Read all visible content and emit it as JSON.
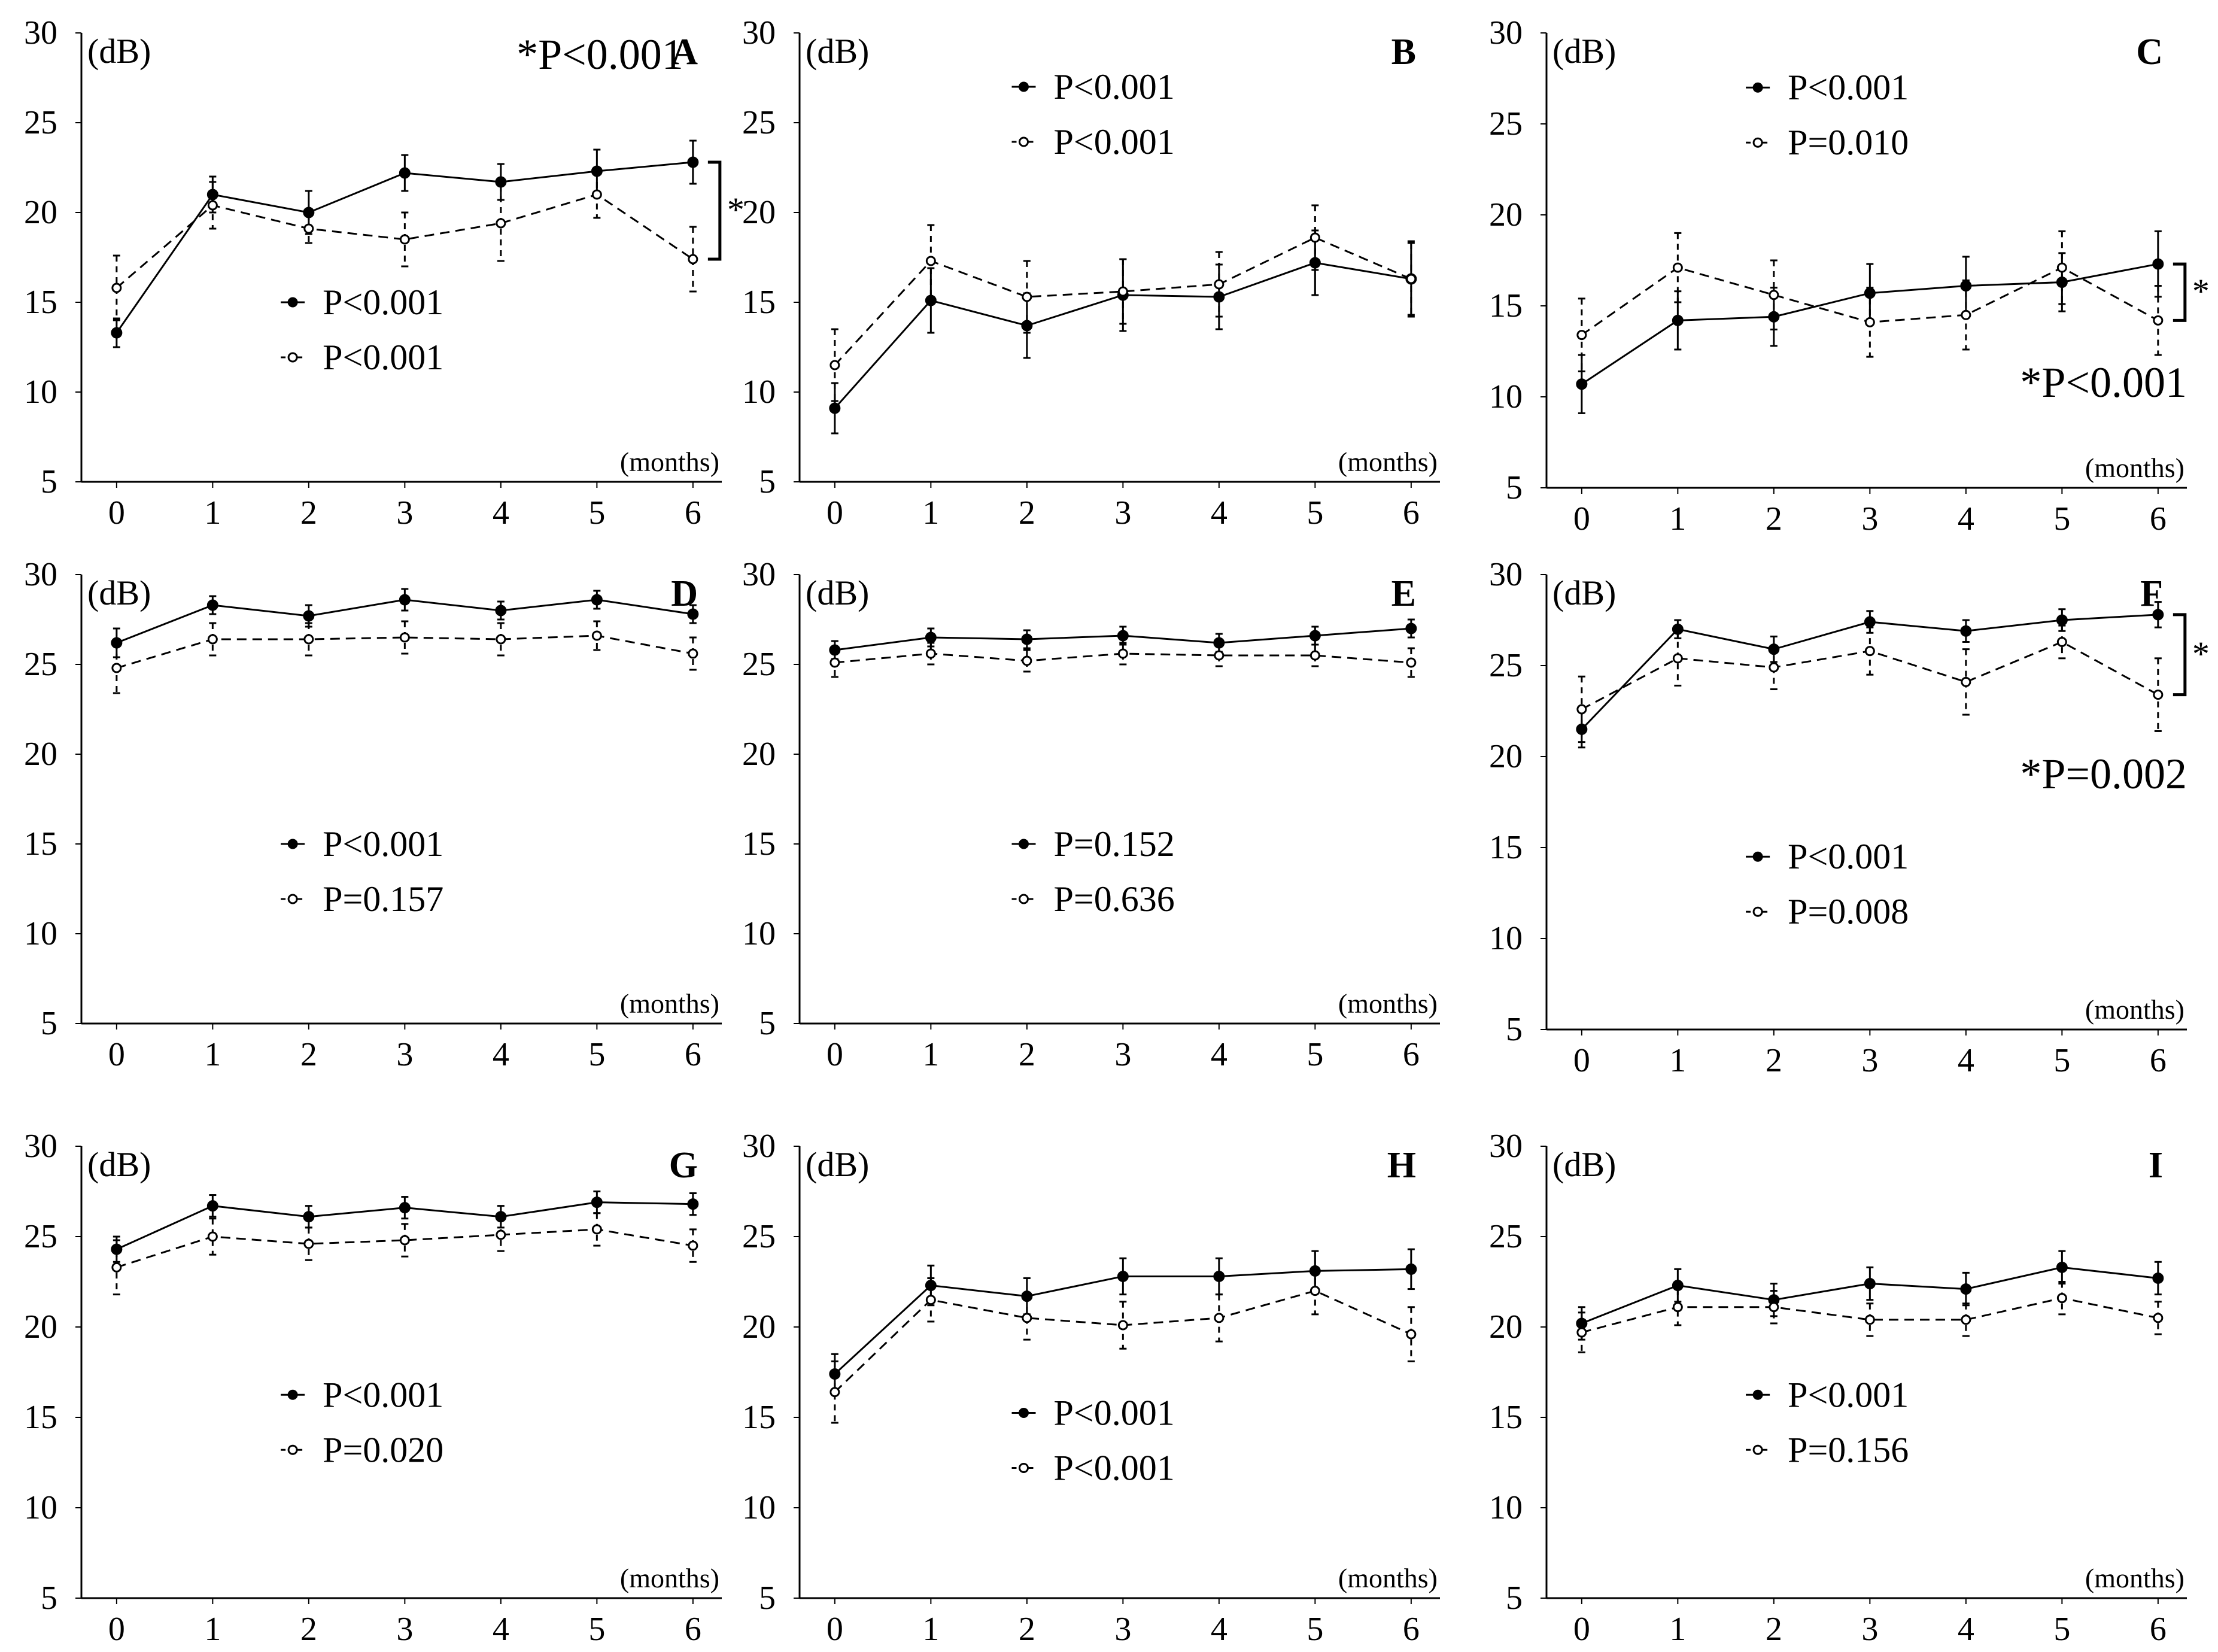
{
  "figure": {
    "unit_label": "(dB)",
    "x_axis_label": "(months)",
    "y_ticks": [
      30,
      25,
      20,
      15,
      10,
      5
    ],
    "x_ticks": [
      0,
      1,
      2,
      3,
      4,
      5,
      6
    ],
    "style": {
      "line_color": "#000000",
      "background": "#ffffff"
    }
  },
  "chart_data": [
    {
      "panel": "A",
      "type": "line",
      "x": [
        0,
        1,
        2,
        3,
        4,
        5,
        6
      ],
      "ylim": [
        5,
        30
      ],
      "ylabel": "(dB)",
      "xlabel": "(months)",
      "series": [
        {
          "name": "solid",
          "style": "solid",
          "marker": "filled",
          "p_label": "P<0.001",
          "values": [
            13.3,
            21.0,
            20.0,
            22.2,
            21.7,
            22.3,
            22.8
          ],
          "errors": [
            0.8,
            1.0,
            1.2,
            1.0,
            1.0,
            1.2,
            1.2
          ]
        },
        {
          "name": "dashed",
          "style": "dashed",
          "marker": "open",
          "p_label": "P<0.001",
          "values": [
            15.8,
            20.4,
            19.1,
            18.5,
            19.4,
            21.0,
            17.4
          ],
          "errors": [
            1.8,
            1.3,
            0.8,
            1.5,
            2.1,
            1.3,
            1.8
          ]
        }
      ],
      "bracket": {
        "at_x": 6,
        "label": "*"
      },
      "annotation": "*P<0.001"
    },
    {
      "panel": "B",
      "type": "line",
      "x": [
        0,
        1,
        2,
        3,
        4,
        5,
        6
      ],
      "ylim": [
        5,
        30
      ],
      "ylabel": "(dB)",
      "xlabel": "(months)",
      "series": [
        {
          "name": "solid",
          "style": "solid",
          "marker": "filled",
          "p_label": "P<0.001",
          "values": [
            9.1,
            15.1,
            13.7,
            15.4,
            15.3,
            17.2,
            16.3
          ],
          "errors": [
            1.4,
            1.8,
            1.8,
            2.0,
            1.8,
            1.8,
            2.1
          ]
        },
        {
          "name": "dashed",
          "style": "dashed",
          "marker": "open",
          "p_label": "P<0.001",
          "values": [
            11.5,
            17.3,
            15.3,
            15.6,
            16.0,
            18.6,
            16.3
          ],
          "errors": [
            2.0,
            2.0,
            2.0,
            1.8,
            1.8,
            1.8,
            2.0
          ]
        }
      ]
    },
    {
      "panel": "C",
      "type": "line",
      "x": [
        0,
        1,
        2,
        3,
        4,
        5,
        6
      ],
      "ylim": [
        5,
        30
      ],
      "ylabel": "(dB)",
      "xlabel": "(months)",
      "series": [
        {
          "name": "solid",
          "style": "solid",
          "marker": "filled",
          "p_label": "P<0.001",
          "values": [
            10.7,
            14.2,
            14.4,
            15.7,
            16.1,
            16.3,
            17.3
          ],
          "errors": [
            1.6,
            1.6,
            1.6,
            1.6,
            1.6,
            1.6,
            1.8
          ]
        },
        {
          "name": "dashed",
          "style": "dashed",
          "marker": "open",
          "p_label": "P=0.010",
          "values": [
            13.4,
            17.1,
            15.6,
            14.1,
            14.5,
            17.1,
            14.2
          ],
          "errors": [
            2.0,
            1.9,
            1.9,
            1.9,
            1.9,
            2.0,
            1.9
          ]
        }
      ],
      "bracket": {
        "at_x": 6,
        "label": "*"
      },
      "annotation": "*P<0.001"
    },
    {
      "panel": "D",
      "type": "line",
      "x": [
        0,
        1,
        2,
        3,
        4,
        5,
        6
      ],
      "ylim": [
        5,
        30
      ],
      "ylabel": "(dB)",
      "xlabel": "(months)",
      "series": [
        {
          "name": "solid",
          "style": "solid",
          "marker": "filled",
          "p_label": "P<0.001",
          "values": [
            26.2,
            28.3,
            27.7,
            28.6,
            28.0,
            28.6,
            27.8
          ],
          "errors": [
            0.8,
            0.5,
            0.6,
            0.6,
            0.5,
            0.5,
            0.5
          ]
        },
        {
          "name": "dashed",
          "style": "dashed",
          "marker": "open",
          "p_label": "P=0.157",
          "values": [
            24.8,
            26.4,
            26.4,
            26.5,
            26.4,
            26.6,
            25.6
          ],
          "errors": [
            1.4,
            0.9,
            0.9,
            0.9,
            0.9,
            0.8,
            0.9
          ]
        }
      ]
    },
    {
      "panel": "E",
      "type": "line",
      "x": [
        0,
        1,
        2,
        3,
        4,
        5,
        6
      ],
      "ylim": [
        5,
        30
      ],
      "ylabel": "(dB)",
      "xlabel": "(months)",
      "series": [
        {
          "name": "solid",
          "style": "solid",
          "marker": "filled",
          "p_label": "P=0.152",
          "values": [
            25.8,
            26.5,
            26.4,
            26.6,
            26.2,
            26.6,
            27.0
          ],
          "errors": [
            0.5,
            0.5,
            0.5,
            0.5,
            0.5,
            0.5,
            0.5
          ]
        },
        {
          "name": "dashed",
          "style": "dashed",
          "marker": "open",
          "p_label": "P=0.636",
          "values": [
            25.1,
            25.6,
            25.2,
            25.6,
            25.5,
            25.5,
            25.1
          ],
          "errors": [
            0.8,
            0.6,
            0.6,
            0.6,
            0.6,
            0.6,
            0.8
          ]
        }
      ]
    },
    {
      "panel": "F",
      "type": "line",
      "x": [
        0,
        1,
        2,
        3,
        4,
        5,
        6
      ],
      "ylim": [
        5,
        30
      ],
      "ylabel": "(dB)",
      "xlabel": "(months)",
      "series": [
        {
          "name": "solid",
          "style": "solid",
          "marker": "filled",
          "p_label": "P<0.001",
          "values": [
            21.5,
            27.0,
            25.9,
            27.4,
            26.9,
            27.5,
            27.8
          ],
          "errors": [
            1.0,
            0.5,
            0.7,
            0.6,
            0.6,
            0.6,
            0.7
          ]
        },
        {
          "name": "dashed",
          "style": "dashed",
          "marker": "open",
          "p_label": "P=0.008",
          "values": [
            22.6,
            25.4,
            24.9,
            25.8,
            24.1,
            26.3,
            23.4
          ],
          "errors": [
            1.8,
            1.5,
            1.2,
            1.3,
            1.8,
            0.9,
            2.0
          ]
        }
      ],
      "bracket": {
        "at_x": 6,
        "label": "*"
      },
      "annotation": "*P=0.002"
    },
    {
      "panel": "G",
      "type": "line",
      "x": [
        0,
        1,
        2,
        3,
        4,
        5,
        6
      ],
      "ylim": [
        5,
        30
      ],
      "ylabel": "(dB)",
      "xlabel": "(months)",
      "series": [
        {
          "name": "solid",
          "style": "solid",
          "marker": "filled",
          "p_label": "P<0.001",
          "values": [
            24.3,
            26.7,
            26.1,
            26.6,
            26.1,
            26.9,
            26.8
          ],
          "errors": [
            0.7,
            0.6,
            0.6,
            0.6,
            0.6,
            0.6,
            0.6
          ]
        },
        {
          "name": "dashed",
          "style": "dashed",
          "marker": "open",
          "p_label": "P=0.020",
          "values": [
            23.3,
            25.0,
            24.6,
            24.8,
            25.1,
            25.4,
            24.5
          ],
          "errors": [
            1.5,
            1.0,
            0.9,
            0.9,
            0.9,
            0.9,
            0.9
          ]
        }
      ]
    },
    {
      "panel": "H",
      "type": "line",
      "x": [
        0,
        1,
        2,
        3,
        4,
        5,
        6
      ],
      "ylim": [
        5,
        30
      ],
      "ylabel": "(dB)",
      "xlabel": "(months)",
      "series": [
        {
          "name": "solid",
          "style": "solid",
          "marker": "filled",
          "p_label": "P<0.001",
          "values": [
            17.4,
            22.3,
            21.7,
            22.8,
            22.8,
            23.1,
            23.2
          ],
          "errors": [
            1.1,
            1.1,
            1.0,
            1.0,
            1.0,
            1.1,
            1.1
          ]
        },
        {
          "name": "dashed",
          "style": "dashed",
          "marker": "open",
          "p_label": "P<0.001",
          "values": [
            16.4,
            21.5,
            20.5,
            20.1,
            20.5,
            22.0,
            19.6
          ],
          "errors": [
            1.7,
            1.2,
            1.2,
            1.3,
            1.3,
            1.3,
            1.5
          ]
        }
      ]
    },
    {
      "panel": "I",
      "type": "line",
      "x": [
        0,
        1,
        2,
        3,
        4,
        5,
        6
      ],
      "ylim": [
        5,
        30
      ],
      "ylabel": "(dB)",
      "xlabel": "(months)",
      "series": [
        {
          "name": "solid",
          "style": "solid",
          "marker": "filled",
          "p_label": "P<0.001",
          "values": [
            20.2,
            22.3,
            21.5,
            22.4,
            22.1,
            23.3,
            22.7
          ],
          "errors": [
            0.9,
            0.9,
            0.9,
            0.9,
            0.9,
            0.9,
            0.9
          ]
        },
        {
          "name": "dashed",
          "style": "dashed",
          "marker": "open",
          "p_label": "P=0.156",
          "values": [
            19.7,
            21.1,
            21.1,
            20.4,
            20.4,
            21.6,
            20.5
          ],
          "errors": [
            1.1,
            1.0,
            0.9,
            0.9,
            0.9,
            0.9,
            0.9
          ]
        }
      ]
    }
  ]
}
